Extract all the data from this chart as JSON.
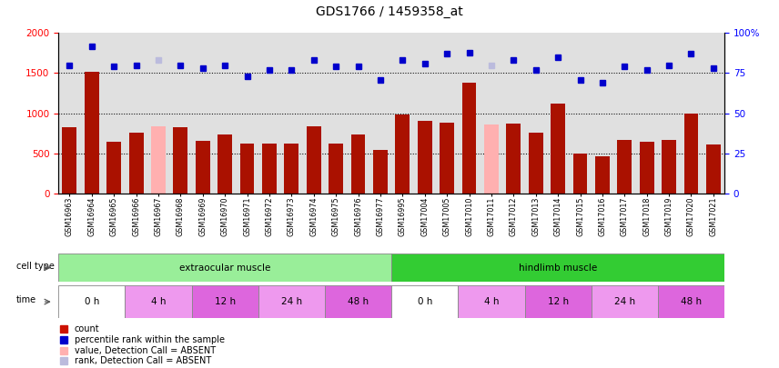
{
  "title": "GDS1766 / 1459358_at",
  "samples": [
    "GSM16963",
    "GSM16964",
    "GSM16965",
    "GSM16966",
    "GSM16967",
    "GSM16968",
    "GSM16969",
    "GSM16970",
    "GSM16971",
    "GSM16972",
    "GSM16973",
    "GSM16974",
    "GSM16975",
    "GSM16976",
    "GSM16977",
    "GSM16995",
    "GSM17004",
    "GSM17005",
    "GSM17010",
    "GSM17011",
    "GSM17012",
    "GSM17013",
    "GSM17014",
    "GSM17015",
    "GSM17016",
    "GSM17017",
    "GSM17018",
    "GSM17019",
    "GSM17020",
    "GSM17021"
  ],
  "counts": [
    820,
    1520,
    640,
    760,
    840,
    820,
    650,
    730,
    620,
    615,
    620,
    840,
    615,
    730,
    540,
    985,
    900,
    880,
    1380,
    860,
    870,
    760,
    1120,
    500,
    460,
    670,
    640,
    660,
    990,
    605
  ],
  "ranks": [
    80,
    92,
    79,
    80,
    83,
    80,
    78,
    80,
    73,
    77,
    77,
    83,
    79,
    79,
    71,
    83,
    81,
    87,
    88,
    80,
    83,
    77,
    85,
    71,
    69,
    79,
    77,
    80,
    87,
    78
  ],
  "absent_bar_indices": [
    4,
    19
  ],
  "absent_rank_indices": [
    4,
    19
  ],
  "bar_color": "#aa1100",
  "bar_absent_color": "#ffb0b0",
  "rank_color": "#0000cc",
  "rank_absent_color": "#bbbbdd",
  "cell_types": [
    {
      "label": "extraocular muscle",
      "start": 0,
      "end": 15,
      "color": "#99ee99"
    },
    {
      "label": "hindlimb muscle",
      "start": 15,
      "end": 30,
      "color": "#33cc33"
    }
  ],
  "time_groups": [
    {
      "label": "0 h",
      "start": 0,
      "end": 3,
      "color": "#ffffff"
    },
    {
      "label": "4 h",
      "start": 3,
      "end": 6,
      "color": "#ee99ee"
    },
    {
      "label": "12 h",
      "start": 6,
      "end": 9,
      "color": "#dd66dd"
    },
    {
      "label": "24 h",
      "start": 9,
      "end": 12,
      "color": "#ee99ee"
    },
    {
      "label": "48 h",
      "start": 12,
      "end": 15,
      "color": "#dd66dd"
    },
    {
      "label": "0 h",
      "start": 15,
      "end": 18,
      "color": "#ffffff"
    },
    {
      "label": "4 h",
      "start": 18,
      "end": 21,
      "color": "#ee99ee"
    },
    {
      "label": "12 h",
      "start": 21,
      "end": 24,
      "color": "#dd66dd"
    },
    {
      "label": "24 h",
      "start": 24,
      "end": 27,
      "color": "#ee99ee"
    },
    {
      "label": "48 h",
      "start": 27,
      "end": 30,
      "color": "#dd66dd"
    }
  ],
  "ylim_left": [
    0,
    2000
  ],
  "ylim_right": [
    0,
    100
  ],
  "yticks_left": [
    0,
    500,
    1000,
    1500,
    2000
  ],
  "yticks_right": [
    0,
    25,
    50,
    75,
    100
  ],
  "yticklabels_right": [
    "0",
    "25",
    "50",
    "75",
    "100%"
  ],
  "grid_values": [
    500,
    1000,
    1500
  ],
  "legend_items": [
    {
      "label": "count",
      "color": "#cc1100"
    },
    {
      "label": "percentile rank within the sample",
      "color": "#0000cc"
    },
    {
      "label": "value, Detection Call = ABSENT",
      "color": "#ffb0b0"
    },
    {
      "label": "rank, Detection Call = ABSENT",
      "color": "#bbbbdd"
    }
  ]
}
